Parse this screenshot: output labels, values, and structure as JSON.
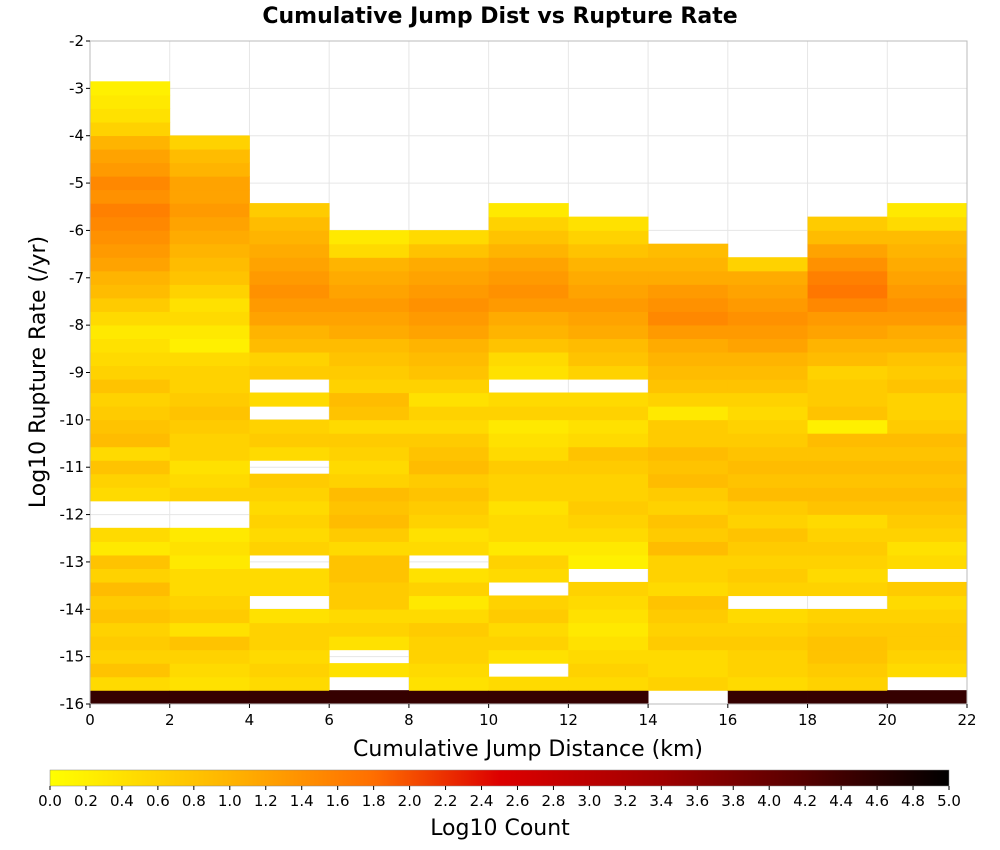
{
  "chart_data": {
    "type": "heatmap",
    "title": "Cumulative Jump Dist vs Rupture Rate",
    "xlabel": "Cumulative Jump Distance (km)",
    "ylabel": "Log10 Rupture Rate (/yr)",
    "xlim": [
      0,
      22
    ],
    "ylim": [
      -16,
      -2
    ],
    "x_ticks": [
      "0",
      "2",
      "4",
      "6",
      "8",
      "10",
      "12",
      "14",
      "16",
      "18",
      "20",
      "22"
    ],
    "y_ticks": [
      "-2",
      "-3",
      "-4",
      "-5",
      "-6",
      "-7",
      "-8",
      "-9",
      "-10",
      "-11",
      "-12",
      "-13",
      "-14",
      "-15",
      "-16"
    ],
    "x_bin_width": 2,
    "y_bin_height": 0.2857,
    "colorbar": {
      "label": "Log10 Count",
      "range": [
        0,
        5
      ],
      "ticks": [
        "0.0",
        "0.2",
        "0.4",
        "0.6",
        "0.8",
        "1.0",
        "1.2",
        "1.4",
        "1.6",
        "1.8",
        "2.0",
        "2.2",
        "2.4",
        "2.6",
        "2.8",
        "3.0",
        "3.2",
        "3.4",
        "3.6",
        "3.8",
        "4.0",
        "4.2",
        "4.4",
        "4.6",
        "4.8",
        "5.0"
      ],
      "stops": [
        {
          "v": 0.0,
          "color": "#ffff00"
        },
        {
          "v": 1.0,
          "color": "#ffb400"
        },
        {
          "v": 1.8,
          "color": "#ff6e00"
        },
        {
          "v": 2.5,
          "color": "#dd0000"
        },
        {
          "v": 3.4,
          "color": "#a00000"
        },
        {
          "v": 4.2,
          "color": "#550000"
        },
        {
          "v": 5.0,
          "color": "#000000"
        }
      ]
    },
    "grid": true,
    "columns": [
      [
        4.5,
        0.5,
        0.8,
        0.6,
        0.7,
        0.6,
        0.8,
        0.7,
        0.9,
        0.6,
        0.8,
        0.3,
        0.5,
        null,
        null,
        0.5,
        0.6,
        0.8,
        0.5,
        0.9,
        0.8,
        0.7,
        0.6,
        0.8,
        0.6,
        0.5,
        0.4,
        0.3,
        0.5,
        0.7,
        0.9,
        1.0,
        1.2,
        1.3,
        1.4,
        1.5,
        1.6,
        1.4,
        1.5,
        1.3,
        1.2,
        1.0,
        0.6,
        0.4,
        0.3,
        0.2
      ],
      [
        4.5,
        0.4,
        0.5,
        0.6,
        0.8,
        0.4,
        0.7,
        0.6,
        0.5,
        0.5,
        0.3,
        0.4,
        0.3,
        null,
        null,
        0.6,
        0.5,
        0.4,
        0.6,
        0.6,
        0.7,
        0.8,
        0.7,
        0.6,
        0.6,
        0.5,
        0.2,
        0.3,
        0.5,
        0.4,
        0.6,
        0.8,
        0.9,
        1.0,
        1.1,
        1.2,
        1.3,
        1.2,
        1.2,
        1.0,
        0.9,
        0.6
      ],
      [
        4.5,
        0.5,
        0.6,
        0.5,
        0.6,
        0.6,
        0.4,
        null,
        0.5,
        0.5,
        null,
        0.6,
        0.5,
        0.6,
        0.5,
        0.6,
        0.7,
        null,
        0.5,
        0.7,
        0.6,
        null,
        0.5,
        null,
        0.7,
        0.6,
        0.9,
        1.0,
        1.2,
        1.3,
        1.4,
        1.3,
        1.2,
        1.1,
        1.0,
        0.9,
        0.7
      ],
      [
        4.5,
        null,
        0.4,
        null,
        0.4,
        0.6,
        0.5,
        0.7,
        0.7,
        0.8,
        0.8,
        0.5,
        0.7,
        0.9,
        0.8,
        0.9,
        0.6,
        0.5,
        0.6,
        0.7,
        0.5,
        0.8,
        0.9,
        0.6,
        0.7,
        0.8,
        0.9,
        1.1,
        1.2,
        1.3,
        1.2,
        1.1,
        1.0,
        0.5,
        0.3
      ],
      [
        4.5,
        0.4,
        0.5,
        0.6,
        0.6,
        0.7,
        0.5,
        0.3,
        0.6,
        0.4,
        null,
        0.5,
        0.4,
        0.6,
        0.7,
        0.8,
        0.7,
        0.9,
        0.8,
        0.7,
        0.5,
        0.6,
        0.4,
        0.6,
        0.8,
        0.9,
        1.0,
        1.2,
        1.3,
        1.4,
        1.3,
        1.2,
        1.1,
        0.8,
        0.5
      ],
      [
        4.5,
        0.5,
        null,
        0.4,
        0.6,
        0.5,
        0.7,
        0.6,
        null,
        0.5,
        0.6,
        0.3,
        0.5,
        0.5,
        0.4,
        0.6,
        0.6,
        0.7,
        0.5,
        0.4,
        0.3,
        0.6,
        0.5,
        null,
        0.4,
        0.5,
        0.8,
        1.0,
        1.1,
        1.3,
        1.4,
        1.3,
        1.2,
        1.0,
        0.8,
        0.6,
        0.3
      ],
      [
        4.5,
        0.5,
        0.6,
        0.5,
        0.4,
        0.3,
        0.4,
        0.5,
        0.6,
        null,
        0.2,
        0.3,
        0.5,
        0.6,
        0.7,
        0.6,
        0.6,
        0.7,
        0.8,
        0.5,
        0.4,
        0.6,
        0.5,
        null,
        0.6,
        0.8,
        0.9,
        1.1,
        1.2,
        1.3,
        1.2,
        1.1,
        1.0,
        0.8,
        0.6,
        0.4
      ],
      [
        null,
        0.6,
        0.5,
        0.5,
        0.7,
        0.6,
        0.7,
        0.8,
        0.5,
        0.6,
        0.6,
        0.9,
        0.7,
        0.8,
        0.6,
        0.7,
        0.9,
        0.8,
        0.9,
        0.7,
        0.7,
        0.3,
        0.6,
        0.8,
        0.9,
        1.0,
        1.1,
        1.3,
        1.5,
        1.4,
        1.3,
        1.1,
        1.0,
        0.9
      ],
      [
        4.5,
        0.5,
        0.6,
        0.6,
        0.7,
        0.6,
        0.5,
        null,
        0.6,
        0.7,
        0.6,
        0.7,
        0.8,
        0.6,
        0.7,
        0.9,
        0.8,
        0.9,
        0.8,
        0.7,
        0.6,
        0.5,
        0.6,
        0.8,
        0.9,
        1.0,
        1.2,
        1.3,
        1.4,
        1.3,
        1.2,
        1.1,
        0.6,
        null
      ],
      [
        4.5,
        0.6,
        0.7,
        0.8,
        0.8,
        0.7,
        0.6,
        null,
        0.6,
        0.5,
        0.6,
        0.7,
        0.6,
        0.5,
        0.8,
        0.9,
        0.8,
        0.9,
        0.8,
        0.9,
        0.2,
        0.8,
        0.7,
        0.7,
        0.6,
        0.9,
        1.0,
        1.2,
        1.3,
        1.5,
        1.7,
        1.6,
        1.4,
        1.2,
        0.9,
        0.7,
        null
      ],
      [
        4.5,
        null,
        0.5,
        0.6,
        0.7,
        0.7,
        0.6,
        0.5,
        0.7,
        null,
        0.5,
        0.4,
        0.6,
        0.7,
        0.8,
        0.9,
        0.8,
        0.9,
        0.8,
        0.9,
        0.7,
        0.6,
        0.6,
        0.8,
        0.7,
        0.8,
        1.0,
        1.1,
        1.3,
        1.4,
        1.3,
        1.2,
        1.1,
        1.0,
        0.9,
        0.5,
        0.3
      ]
    ]
  }
}
